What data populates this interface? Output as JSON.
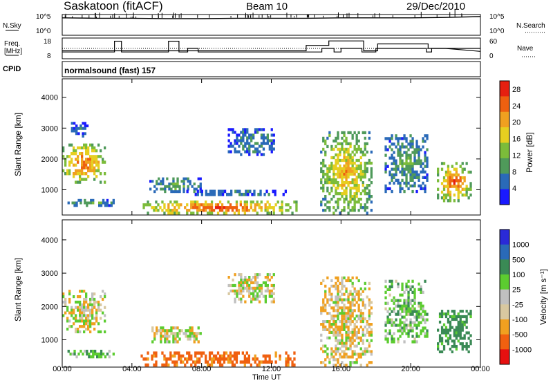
{
  "header": {
    "station": "Saskatoon (fitACF)",
    "beam": "Beam 10",
    "date": "29/Dec/2010"
  },
  "noise_panel": {
    "left_label": "N.Sky",
    "left_ticks": [
      "10^5",
      "10^0"
    ],
    "right_label": "N.Search",
    "right_ticks": [
      "10^5",
      "10^0"
    ]
  },
  "freq_panel": {
    "left_label_line1": "Freq.",
    "left_label_line2": "[MHz]",
    "left_ticks": [
      "18",
      "8"
    ],
    "right_label": "Nave",
    "right_ticks": [
      "60",
      "0"
    ]
  },
  "cpid_panel": {
    "left_label": "CPID",
    "mode_text": "normalsound (fast) 157"
  },
  "x_axis": {
    "ticks": [
      "00:00",
      "04:00",
      "08:00",
      "12:00",
      "16:00",
      "20:00",
      "00:00"
    ],
    "label": "Time UT"
  },
  "colors": {
    "power": [
      "#1a1aff",
      "#2a6ab8",
      "#4f9a5a",
      "#7cbc3a",
      "#e6cf20",
      "#f0a020",
      "#ee6010",
      "#e62010"
    ],
    "velocity": [
      "#e61010",
      "#f06010",
      "#f0a020",
      "#d8c8a0",
      "#c0c0c0",
      "#5ccc30",
      "#3a8a55",
      "#2a6ab8",
      "#2a2ad8"
    ]
  },
  "chart_data": [
    {
      "type": "line",
      "panel": "noise",
      "title": "",
      "series": [
        {
          "name": "N.Sky",
          "x_hours": [
            0,
            2,
            4,
            6,
            8,
            10,
            12,
            14,
            16,
            18,
            20,
            22,
            24
          ],
          "values_log10": [
            4.2,
            4.1,
            4.1,
            4.0,
            4.0,
            4.1,
            4.1,
            4.1,
            4.2,
            4.2,
            4.2,
            4.3,
            4.5
          ]
        },
        {
          "name": "N.Search",
          "x_hours": [
            0,
            24
          ],
          "values_log10": [
            null,
            null
          ]
        }
      ]
    },
    {
      "type": "line",
      "panel": "frequency",
      "ylim": [
        8,
        18
      ],
      "y2lim": [
        0,
        60
      ],
      "series": [
        {
          "name": "Freq.",
          "x_hours": [
            0,
            3.0,
            3.0,
            3.4,
            3.4,
            6.1,
            6.1,
            6.7,
            6.7,
            7.2,
            7.2,
            7.8,
            7.8,
            14.9,
            14.9,
            15.6,
            15.6,
            16.0,
            16.0,
            17.2,
            17.2,
            18.0,
            18.0,
            20.9,
            20.9,
            21.2,
            21.2,
            24.0
          ],
          "values": [
            11,
            11,
            17,
            17,
            11,
            11,
            17,
            17,
            11,
            11,
            13,
            13,
            11,
            11,
            13,
            13,
            11,
            11,
            13,
            13,
            11,
            11,
            13,
            13,
            11,
            11,
            13,
            13
          ]
        },
        {
          "name": "Nave",
          "x_hours": [
            0,
            6.0,
            6.0,
            6.8,
            6.8,
            7.2,
            7.2,
            14.0,
            14.0,
            15.3,
            15.3,
            17.3,
            17.3,
            18.1,
            18.1,
            21.0,
            21.0,
            22.0,
            22.0,
            24.0
          ],
          "values": [
            22,
            22,
            22,
            22,
            22,
            22,
            22,
            22,
            40,
            40,
            55,
            55,
            22,
            22,
            45,
            45,
            30,
            30,
            30,
            20
          ]
        }
      ],
      "reference_line": 25
    },
    {
      "type": "heatmap",
      "panel": "power",
      "xlabel": "",
      "ylabel": "Slant Range [km]",
      "xlim": [
        0,
        24
      ],
      "ylim": [
        180,
        4600
      ],
      "yticks": [
        1000,
        2000,
        3000,
        4000
      ],
      "colorbar": {
        "label": "Power [dB]",
        "ticks": [
          4,
          8,
          12,
          16,
          20,
          24,
          28
        ],
        "range": [
          0,
          30
        ]
      },
      "echo_regions": [
        {
          "t_start": 0.0,
          "t_end": 2.5,
          "r_start": 1200,
          "r_end": 2500,
          "level": 22
        },
        {
          "t_start": 0.5,
          "t_end": 1.5,
          "r_start": 2700,
          "r_end": 3200,
          "level": 6
        },
        {
          "t_start": 0.3,
          "t_end": 3.0,
          "r_start": 450,
          "r_end": 700,
          "level": 10
        },
        {
          "t_start": 4.5,
          "t_end": 13.5,
          "r_start": 200,
          "r_end": 650,
          "level": 24
        },
        {
          "t_start": 5.0,
          "t_end": 8.0,
          "r_start": 900,
          "r_end": 1400,
          "level": 10
        },
        {
          "t_start": 7.0,
          "t_end": 13.0,
          "r_start": 800,
          "r_end": 1000,
          "level": 8
        },
        {
          "t_start": 9.5,
          "t_end": 12.2,
          "r_start": 2100,
          "r_end": 3000,
          "level": 8
        },
        {
          "t_start": 14.8,
          "t_end": 17.8,
          "r_start": 200,
          "r_end": 2900,
          "level": 18
        },
        {
          "t_start": 18.5,
          "t_end": 21.0,
          "r_start": 900,
          "r_end": 2800,
          "level": 10
        },
        {
          "t_start": 21.5,
          "t_end": 23.5,
          "r_start": 600,
          "r_end": 1900,
          "level": 22
        }
      ]
    },
    {
      "type": "heatmap",
      "panel": "velocity",
      "xlabel": "Time UT",
      "ylabel": "Slant Range [km]",
      "xlim": [
        0,
        24
      ],
      "ylim": [
        180,
        4600
      ],
      "yticks": [
        1000,
        2000,
        3000,
        4000
      ],
      "colorbar": {
        "label": "Velocity [m s⁻¹]",
        "ticks": [
          1000,
          500,
          100,
          25,
          -25,
          -100,
          -500,
          -1000
        ]
      },
      "echo_regions": [
        {
          "t_start": 0.0,
          "t_end": 2.5,
          "r_start": 1200,
          "r_end": 2500,
          "level": 0
        },
        {
          "t_start": 0.3,
          "t_end": 3.0,
          "r_start": 450,
          "r_end": 700,
          "level": 80
        },
        {
          "t_start": 4.5,
          "t_end": 13.5,
          "r_start": 200,
          "r_end": 650,
          "level": -150
        },
        {
          "t_start": 5.0,
          "t_end": 8.0,
          "r_start": 900,
          "r_end": 1400,
          "level": 0
        },
        {
          "t_start": 9.5,
          "t_end": 12.2,
          "r_start": 2100,
          "r_end": 3000,
          "level": 0
        },
        {
          "t_start": 14.8,
          "t_end": 17.8,
          "r_start": 200,
          "r_end": 2900,
          "level": -20
        },
        {
          "t_start": 18.5,
          "t_end": 21.0,
          "r_start": 900,
          "r_end": 2800,
          "level": 60
        },
        {
          "t_start": 21.5,
          "t_end": 23.5,
          "r_start": 600,
          "r_end": 1900,
          "level": 150
        }
      ]
    }
  ]
}
